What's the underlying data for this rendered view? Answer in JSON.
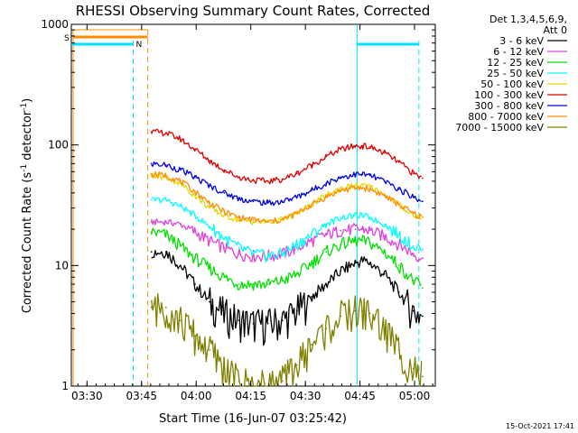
{
  "title": "RHESSI Observing Summary Count Rates, Corrected",
  "footer_date": "15-Oct-2021 17:41",
  "legend_header": [
    "Det 1,3,4,5,6,9,",
    "Att 0"
  ],
  "state_markers": [
    {
      "label": "S",
      "color": "#ff8c00"
    },
    {
      "label": "N",
      "color": "#00e0ff"
    }
  ],
  "chart_data": {
    "type": "line",
    "title": "RHESSI Observing Summary Count Rates, Corrected",
    "xlabel": "Start Time (16-Jun-07 03:25:42)",
    "ylabel_parts": [
      "Corrected Count Rate (s",
      "-1",
      " detector",
      "-1",
      ")"
    ],
    "x_unit": "minutes since 03:25:42",
    "xlim": [
      0,
      100
    ],
    "x_ticks": [
      {
        "t": 4.3,
        "label": "03:30"
      },
      {
        "t": 19.3,
        "label": "03:45"
      },
      {
        "t": 34.3,
        "label": "04:00"
      },
      {
        "t": 49.3,
        "label": "04:15"
      },
      {
        "t": 64.3,
        "label": "04:30"
      },
      {
        "t": 79.3,
        "label": "04:45"
      },
      {
        "t": 94.3,
        "label": "05:00"
      }
    ],
    "y_scale": "log",
    "ylim": [
      1,
      1000
    ],
    "y_ticks": [
      {
        "v": 1,
        "label": "1"
      },
      {
        "v": 10,
        "label": "10"
      },
      {
        "v": 100,
        "label": "100"
      },
      {
        "v": 1000,
        "label": "1000"
      }
    ],
    "x": [
      22,
      26,
      30,
      34,
      38,
      42,
      46,
      50,
      54,
      58,
      62,
      66,
      70,
      74,
      78,
      80,
      82,
      86,
      90,
      94,
      96.5
    ],
    "series": [
      {
        "name": "3 - 6 keV",
        "color": "#000000",
        "values": [
          13,
          13,
          10,
          7,
          5,
          4,
          3.5,
          3.3,
          3.3,
          3.5,
          4.2,
          5.5,
          7,
          9,
          10.5,
          11,
          10.5,
          8.5,
          6,
          4.2,
          3.8
        ]
      },
      {
        "name": "6 - 12 keV",
        "color": "#e040e0",
        "values": [
          23,
          23,
          22,
          19,
          16,
          14,
          12.5,
          12,
          12,
          12.5,
          14,
          16,
          18,
          19.5,
          20,
          20,
          19.5,
          17.5,
          15,
          12.5,
          11.5
        ]
      },
      {
        "name": "12 - 25 keV",
        "color": "#00e000",
        "values": [
          19,
          18,
          14.5,
          11.5,
          9.5,
          8,
          7,
          7,
          7,
          7.5,
          8.5,
          10.5,
          13,
          15,
          16,
          16,
          15.5,
          13,
          10,
          7.5,
          6.5
        ]
      },
      {
        "name": "25 - 50 keV",
        "color": "#00ffff",
        "values": [
          35,
          35,
          31,
          26,
          21,
          17,
          14,
          12.5,
          12,
          12.5,
          15,
          18,
          22,
          25,
          26,
          26,
          25,
          22,
          18,
          14.5,
          13.5
        ]
      },
      {
        "name": "50 - 100 keV",
        "color": "#e6d600",
        "values": [
          55,
          54,
          48,
          38,
          30,
          26,
          24,
          23,
          23,
          24,
          27,
          32,
          38,
          44,
          46,
          46,
          45,
          39,
          32,
          26,
          25
        ]
      },
      {
        "name": "100 - 300 keV",
        "color": "#e00000",
        "values": [
          128,
          126,
          112,
          92,
          74,
          62,
          54,
          51,
          50,
          52,
          58,
          68,
          80,
          92,
          98,
          98,
          96,
          86,
          72,
          58,
          53
        ]
      },
      {
        "name": "300 - 800 keV",
        "color": "#0000e0",
        "values": [
          70,
          68,
          62,
          54,
          46,
          40,
          36,
          34,
          33,
          34,
          37,
          42,
          48,
          54,
          57,
          57,
          56,
          50,
          43,
          37,
          34
        ]
      },
      {
        "name": "800 - 7000 keV",
        "color": "#ff8c00",
        "values": [
          57,
          56,
          50,
          41,
          33,
          28,
          25,
          24,
          23,
          24,
          27,
          32,
          37,
          42,
          44,
          44,
          43,
          38,
          32,
          27,
          25
        ]
      },
      {
        "name": "7000 - 15000 keV",
        "color": "#808000",
        "values": [
          4.5,
          4.5,
          3.5,
          2.6,
          2.0,
          1.4,
          1.1,
          1.0,
          1.0,
          1.1,
          1.5,
          2.2,
          3.0,
          3.8,
          4.2,
          4.2,
          4.0,
          3.0,
          2.0,
          1.4,
          1.2
        ]
      }
    ]
  }
}
